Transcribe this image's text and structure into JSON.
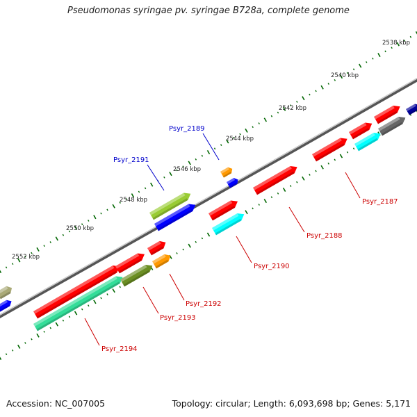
{
  "title": "Pseudomonas syringae pv. syringae B728a, complete genome",
  "footer": {
    "accession": "Accession: NC_007005",
    "topology": "Topology: circular; Length: 6,093,698 bp; Genes: 5,171"
  },
  "scale_labels": [
    "2538 kbp",
    "2540 kbp",
    "2542 kbp",
    "2544 kbp",
    "2546 kbp",
    "2548 kbp",
    "2550 kbp",
    "2552 kbp"
  ],
  "gene_labels": [
    {
      "text": "Psyr_2187",
      "color": "red"
    },
    {
      "text": "Psyr_2188",
      "color": "red"
    },
    {
      "text": "Psyr_2189",
      "color": "blue"
    },
    {
      "text": "Psyr_2190",
      "color": "red"
    },
    {
      "text": "Psyr_2191",
      "color": "blue"
    },
    {
      "text": "Psyr_2192",
      "color": "red"
    },
    {
      "text": "Psyr_2193",
      "color": "red"
    },
    {
      "text": "Psyr_2194",
      "color": "red"
    }
  ],
  "colors": {
    "red": "#ff0000",
    "blue": "#0000ff",
    "cyan": "#00ffff",
    "orange": "#ff9900",
    "olive": "#6b8e23",
    "yellowgreen": "#99cc33",
    "seagreen": "#33dd99",
    "gray": "#666666",
    "navy": "#000099",
    "khaki": "#aaaa77",
    "tick": "#006600",
    "label_red": "#cc0000",
    "label_blue": "#0000cc"
  }
}
